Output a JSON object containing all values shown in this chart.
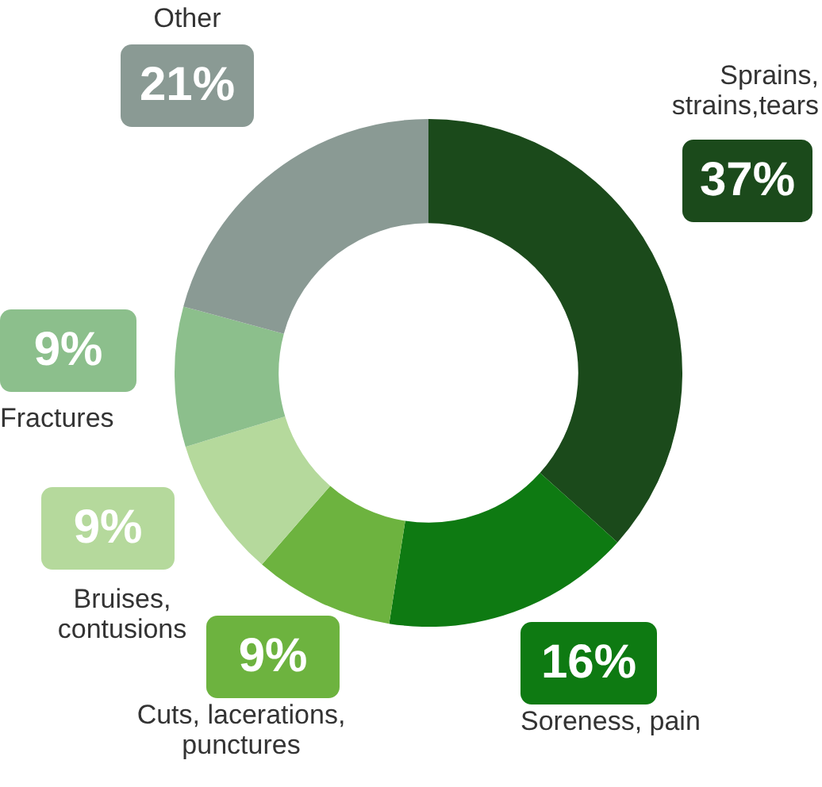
{
  "chart_data": {
    "type": "donut",
    "categories": [
      "Sprains, strains,tears",
      "Soreness, pain",
      "Cuts, lacerations, punctures",
      "Bruises, contusions",
      "Fractures",
      "Other"
    ],
    "values": [
      37,
      16,
      9,
      9,
      9,
      21
    ],
    "value_labels": [
      "37%",
      "16%",
      "9%",
      "9%",
      "9%",
      "21%"
    ],
    "colors": [
      "#1b4a1b",
      "#0e7a12",
      "#6db33f",
      "#b5d99c",
      "#8cbf8c",
      "#8a9a94"
    ],
    "legend": false
  }
}
